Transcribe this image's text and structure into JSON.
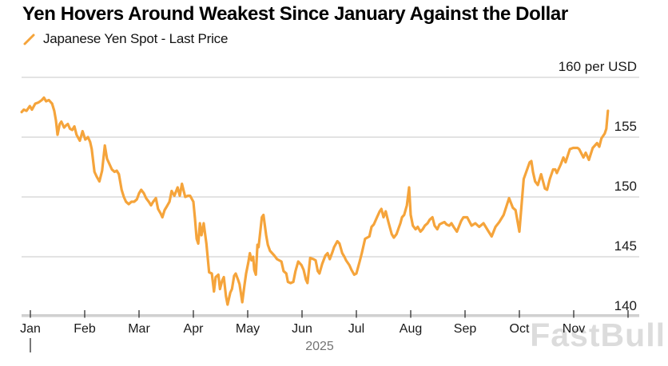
{
  "header": {
    "title": "Yen Hovers Around Weakest Since January Against the Dollar",
    "legend_label": "Japanese Yen Spot - Last Price"
  },
  "watermark": "FastBull",
  "colors": {
    "line": "#F5A43B",
    "grid": "#D2D2D2",
    "axis_bar": "#D0D0D0",
    "tick": "#3F3F3F",
    "axis_text": "#1A1A1A",
    "year_text": "#737373",
    "watermark": "#DCDCDC"
  },
  "chart_data": {
    "type": "line",
    "title": "Yen Hovers Around Weakest Since January Against the Dollar",
    "series_name": "Japanese Yen Spot - Last Price",
    "unit": "per USD",
    "legend_position": "top-left",
    "grid": "horizontal-only",
    "x_axis": {
      "months": [
        "Jan",
        "Feb",
        "Mar",
        "Apr",
        "May",
        "Jun",
        "Jul",
        "Aug",
        "Sep",
        "Oct",
        "Nov"
      ],
      "year": "2025"
    },
    "y_axis": {
      "side": "right",
      "ticks": [
        {
          "value": 160,
          "label": "160 per USD"
        },
        {
          "value": 155,
          "label": "155"
        },
        {
          "value": 150,
          "label": "150"
        },
        {
          "value": 145,
          "label": "145"
        },
        {
          "value": 140,
          "label": "140"
        }
      ],
      "visible_range": [
        138.6,
        160.8
      ]
    },
    "points": [
      [
        -0.16,
        157.1
      ],
      [
        -0.12,
        157.3
      ],
      [
        -0.07,
        157.2
      ],
      [
        -0.01,
        157.6
      ],
      [
        0.03,
        157.3
      ],
      [
        0.09,
        157.8
      ],
      [
        0.15,
        157.9
      ],
      [
        0.21,
        158.1
      ],
      [
        0.25,
        158.3
      ],
      [
        0.29,
        158.0
      ],
      [
        0.34,
        158.1
      ],
      [
        0.4,
        157.8
      ],
      [
        0.44,
        157.2
      ],
      [
        0.47,
        156.4
      ],
      [
        0.5,
        155.2
      ],
      [
        0.54,
        156.1
      ],
      [
        0.57,
        156.3
      ],
      [
        0.62,
        155.8
      ],
      [
        0.66,
        156.0
      ],
      [
        0.69,
        156.1
      ],
      [
        0.73,
        155.7
      ],
      [
        0.77,
        155.6
      ],
      [
        0.81,
        155.9
      ],
      [
        0.85,
        155.2
      ],
      [
        0.91,
        154.7
      ],
      [
        0.96,
        155.5
      ],
      [
        1.01,
        154.8
      ],
      [
        1.06,
        155.0
      ],
      [
        1.1,
        154.6
      ],
      [
        1.13,
        154.0
      ],
      [
        1.18,
        152.1
      ],
      [
        1.22,
        151.7
      ],
      [
        1.27,
        151.3
      ],
      [
        1.32,
        152.2
      ],
      [
        1.37,
        154.3
      ],
      [
        1.41,
        153.2
      ],
      [
        1.46,
        152.7
      ],
      [
        1.5,
        152.3
      ],
      [
        1.55,
        152.1
      ],
      [
        1.59,
        152.2
      ],
      [
        1.63,
        151.9
      ],
      [
        1.68,
        150.6
      ],
      [
        1.72,
        150.0
      ],
      [
        1.76,
        149.6
      ],
      [
        1.81,
        149.4
      ],
      [
        1.86,
        149.6
      ],
      [
        1.91,
        149.6
      ],
      [
        1.96,
        149.8
      ],
      [
        2.0,
        150.3
      ],
      [
        2.04,
        150.6
      ],
      [
        2.09,
        150.3
      ],
      [
        2.13,
        149.9
      ],
      [
        2.18,
        149.6
      ],
      [
        2.22,
        149.3
      ],
      [
        2.26,
        149.6
      ],
      [
        2.31,
        149.9
      ],
      [
        2.35,
        149.0
      ],
      [
        2.4,
        148.6
      ],
      [
        2.43,
        148.3
      ],
      [
        2.47,
        148.9
      ],
      [
        2.51,
        149.2
      ],
      [
        2.56,
        149.6
      ],
      [
        2.6,
        150.5
      ],
      [
        2.65,
        150.1
      ],
      [
        2.71,
        150.8
      ],
      [
        2.75,
        150.1
      ],
      [
        2.79,
        151.1
      ],
      [
        2.85,
        150.0
      ],
      [
        2.9,
        150.1
      ],
      [
        2.94,
        150.1
      ],
      [
        3.0,
        149.6
      ],
      [
        3.03,
        148.2
      ],
      [
        3.06,
        146.5
      ],
      [
        3.09,
        146.1
      ],
      [
        3.12,
        147.8
      ],
      [
        3.15,
        146.8
      ],
      [
        3.19,
        147.8
      ],
      [
        3.24,
        146.1
      ],
      [
        3.29,
        143.7
      ],
      [
        3.34,
        143.6
      ],
      [
        3.38,
        142.1
      ],
      [
        3.41,
        143.3
      ],
      [
        3.46,
        143.5
      ],
      [
        3.49,
        142.3
      ],
      [
        3.53,
        143.0
      ],
      [
        3.56,
        143.3
      ],
      [
        3.6,
        141.7
      ],
      [
        3.63,
        141.0
      ],
      [
        3.68,
        142.0
      ],
      [
        3.71,
        142.3
      ],
      [
        3.75,
        143.4
      ],
      [
        3.78,
        143.6
      ],
      [
        3.82,
        143.1
      ],
      [
        3.85,
        142.7
      ],
      [
        3.9,
        141.2
      ],
      [
        3.94,
        142.6
      ],
      [
        3.97,
        143.6
      ],
      [
        4.01,
        144.5
      ],
      [
        4.04,
        145.3
      ],
      [
        4.07,
        144.7
      ],
      [
        4.1,
        145.0
      ],
      [
        4.12,
        143.9
      ],
      [
        4.15,
        143.5
      ],
      [
        4.18,
        146.0
      ],
      [
        4.2,
        145.8
      ],
      [
        4.26,
        148.3
      ],
      [
        4.29,
        148.5
      ],
      [
        4.34,
        146.8
      ],
      [
        4.37,
        146.0
      ],
      [
        4.41,
        145.5
      ],
      [
        4.49,
        145.1
      ],
      [
        4.54,
        144.8
      ],
      [
        4.62,
        144.6
      ],
      [
        4.66,
        143.8
      ],
      [
        4.71,
        143.6
      ],
      [
        4.74,
        142.9
      ],
      [
        4.79,
        142.8
      ],
      [
        4.84,
        142.9
      ],
      [
        4.88,
        143.8
      ],
      [
        4.93,
        144.6
      ],
      [
        4.99,
        144.3
      ],
      [
        5.03,
        143.9
      ],
      [
        5.07,
        143.1
      ],
      [
        5.1,
        142.8
      ],
      [
        5.15,
        144.9
      ],
      [
        5.21,
        144.8
      ],
      [
        5.25,
        144.7
      ],
      [
        5.29,
        143.8
      ],
      [
        5.32,
        143.6
      ],
      [
        5.37,
        144.4
      ],
      [
        5.43,
        145.1
      ],
      [
        5.47,
        145.3
      ],
      [
        5.51,
        144.8
      ],
      [
        5.56,
        145.4
      ],
      [
        5.59,
        145.8
      ],
      [
        5.65,
        146.3
      ],
      [
        5.69,
        146.1
      ],
      [
        5.74,
        145.3
      ],
      [
        5.78,
        145.0
      ],
      [
        5.81,
        144.7
      ],
      [
        5.87,
        144.3
      ],
      [
        5.91,
        143.9
      ],
      [
        5.96,
        143.5
      ],
      [
        6.0,
        143.6
      ],
      [
        6.06,
        144.6
      ],
      [
        6.1,
        145.3
      ],
      [
        6.16,
        146.5
      ],
      [
        6.24,
        146.7
      ],
      [
        6.28,
        147.5
      ],
      [
        6.32,
        147.7
      ],
      [
        6.38,
        148.3
      ],
      [
        6.43,
        148.8
      ],
      [
        6.46,
        149.0
      ],
      [
        6.5,
        148.3
      ],
      [
        6.54,
        148.8
      ],
      [
        6.59,
        147.9
      ],
      [
        6.65,
        146.9
      ],
      [
        6.69,
        146.6
      ],
      [
        6.74,
        146.9
      ],
      [
        6.77,
        147.3
      ],
      [
        6.81,
        147.8
      ],
      [
        6.84,
        148.3
      ],
      [
        6.88,
        148.5
      ],
      [
        6.93,
        149.3
      ],
      [
        6.97,
        150.8
      ],
      [
        7.0,
        148.5
      ],
      [
        7.04,
        147.6
      ],
      [
        7.09,
        147.3
      ],
      [
        7.13,
        147.5
      ],
      [
        7.18,
        147.1
      ],
      [
        7.22,
        147.3
      ],
      [
        7.26,
        147.6
      ],
      [
        7.31,
        147.8
      ],
      [
        7.35,
        148.1
      ],
      [
        7.4,
        148.3
      ],
      [
        7.44,
        147.6
      ],
      [
        7.49,
        147.3
      ],
      [
        7.53,
        147.7
      ],
      [
        7.57,
        147.8
      ],
      [
        7.62,
        147.9
      ],
      [
        7.66,
        147.7
      ],
      [
        7.71,
        147.6
      ],
      [
        7.75,
        147.8
      ],
      [
        7.79,
        147.5
      ],
      [
        7.85,
        147.1
      ],
      [
        7.93,
        148.0
      ],
      [
        7.97,
        148.3
      ],
      [
        8.04,
        148.3
      ],
      [
        8.12,
        147.6
      ],
      [
        8.19,
        147.8
      ],
      [
        8.26,
        147.5
      ],
      [
        8.34,
        147.8
      ],
      [
        8.42,
        147.2
      ],
      [
        8.49,
        146.7
      ],
      [
        8.56,
        147.5
      ],
      [
        8.63,
        147.9
      ],
      [
        8.71,
        148.5
      ],
      [
        8.81,
        149.9
      ],
      [
        8.88,
        149.1
      ],
      [
        8.93,
        148.9
      ],
      [
        9.0,
        147.1
      ],
      [
        9.04,
        149.3
      ],
      [
        9.08,
        151.5
      ],
      [
        9.19,
        152.9
      ],
      [
        9.22,
        153.0
      ],
      [
        9.25,
        152.1
      ],
      [
        9.29,
        151.3
      ],
      [
        9.34,
        151.0
      ],
      [
        9.4,
        151.9
      ],
      [
        9.47,
        150.7
      ],
      [
        9.51,
        150.6
      ],
      [
        9.56,
        151.5
      ],
      [
        9.62,
        152.3
      ],
      [
        9.66,
        152.3
      ],
      [
        9.69,
        152.0
      ],
      [
        9.76,
        152.7
      ],
      [
        9.81,
        153.3
      ],
      [
        9.85,
        152.9
      ],
      [
        9.93,
        154.0
      ],
      [
        9.99,
        154.1
      ],
      [
        10.07,
        154.1
      ],
      [
        10.1,
        154.0
      ],
      [
        10.18,
        153.3
      ],
      [
        10.22,
        153.7
      ],
      [
        10.28,
        153.1
      ],
      [
        10.35,
        154.1
      ],
      [
        10.43,
        154.5
      ],
      [
        10.47,
        154.2
      ],
      [
        10.51,
        154.9
      ],
      [
        10.57,
        155.3
      ],
      [
        10.6,
        155.7
      ],
      [
        10.63,
        157.2
      ]
    ]
  }
}
